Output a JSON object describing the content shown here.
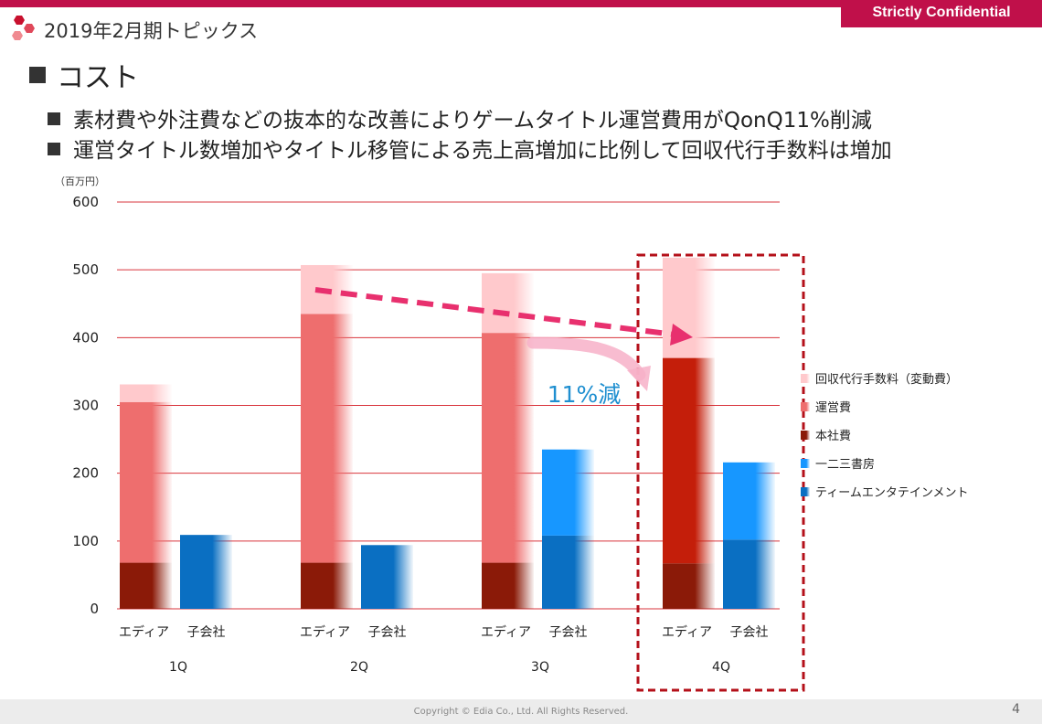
{
  "colors": {
    "brand": "#c0104a",
    "gridline": "#d9343c",
    "highlight_box": "#b4101a",
    "trend_arrow": "#e8306e",
    "reduction_arrow": "#f7b0c8",
    "annotation_text": "#1f8fd0"
  },
  "header": {
    "confidential_label": "Strictly Confidential",
    "topic_title": "2019年2月期トピックス",
    "logo_icon": "hexagon-cluster-icon"
  },
  "section": {
    "title": "コスト"
  },
  "bullets": [
    "素材費や外注費などの抜本的な改善によりゲームタイトル運営費用がQonQ11%削減",
    "運営タイトル数増加やタイトル移管による売上高増加に比例して回収代行手数料は増加"
  ],
  "chart_data": {
    "type": "bar",
    "stacked": true,
    "unit_label": "（百万円）",
    "ylim": [
      0,
      600
    ],
    "yticks": [
      0,
      100,
      200,
      300,
      400,
      500,
      600
    ],
    "grid": true,
    "legend_position": "right",
    "groups": [
      {
        "quarter": "1Q",
        "bars": [
          {
            "label": "エディア",
            "segments": {
              "本社費": 68,
              "運営費": 237,
              "回収代行手数料（変動費）": 26
            }
          },
          {
            "label": "子会社",
            "segments": {
              "ティームエンタテインメント": 109
            }
          }
        ]
      },
      {
        "quarter": "2Q",
        "bars": [
          {
            "label": "エディア",
            "segments": {
              "本社費": 68,
              "運営費": 367,
              "回収代行手数料（変動費）": 72
            }
          },
          {
            "label": "子会社",
            "segments": {
              "ティームエンタテインメント": 94
            }
          }
        ]
      },
      {
        "quarter": "3Q",
        "bars": [
          {
            "label": "エディア",
            "segments": {
              "本社費": 68,
              "運営費": 339,
              "回収代行手数料（変動費）": 88
            }
          },
          {
            "label": "子会社",
            "segments": {
              "ティームエンタテインメント": 108,
              "一二三書房": 127
            }
          }
        ]
      },
      {
        "quarter": "4Q",
        "highlight": true,
        "bars": [
          {
            "label": "エディア",
            "segments": {
              "本社費": 67,
              "運営費": 303,
              "回収代行手数料（変動費）": 148
            }
          },
          {
            "label": "子会社",
            "segments": {
              "ティームエンタテインメント": 102,
              "一二三書房": 114
            }
          }
        ]
      }
    ],
    "series": [
      {
        "name": "回収代行手数料（変動費）",
        "color": "#ffc9cc"
      },
      {
        "name": "運営費",
        "color": "#ee6e6e"
      },
      {
        "name": "本社費",
        "color": "#8b1a08"
      },
      {
        "name": "一二三書房",
        "color": "#1797ff"
      },
      {
        "name": "ティームエンタテインメント",
        "color": "#0a6fc2"
      }
    ],
    "series_colors_4q": {
      "運営費": "#c41e0a"
    },
    "annotation": "11%減"
  },
  "footer": {
    "copyright": "Copyright © Edia Co., Ltd. All Rights Reserved.",
    "page_number": "4"
  }
}
